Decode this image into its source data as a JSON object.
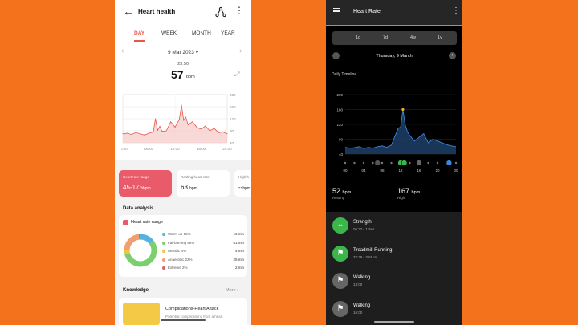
{
  "left": {
    "header": {
      "title": "Heart health",
      "back_icon": "back-arrow-icon",
      "share_icon": "share-icon",
      "more_icon": "more-vertical-icon"
    },
    "tabs": [
      {
        "label": "DAY",
        "active": true
      },
      {
        "label": "WEEK",
        "active": false
      },
      {
        "label": "MONTH",
        "active": false
      },
      {
        "label": "YEAR",
        "active": false
      }
    ],
    "date": "9 Mar 2023",
    "time": "23:50",
    "bpm_value": "57",
    "bpm_unit": "bpm",
    "accent_color": "#e8574a",
    "chart_data": {
      "type": "area",
      "x_ticks": [
        "00:00",
        "06:00",
        "12:00",
        "18:00",
        "24:00"
      ],
      "y_ticks": [
        "200",
        "160",
        "120",
        "80",
        "40"
      ],
      "ylim": [
        40,
        200
      ],
      "series": [
        {
          "x": [
            0,
            1,
            2,
            3,
            4,
            5,
            6,
            7,
            7.5,
            8,
            8.5,
            9,
            10,
            11,
            12,
            13,
            13.5,
            14,
            14.5,
            15,
            16,
            17,
            18,
            19,
            20,
            21,
            22,
            23,
            24
          ],
          "values": [
            70,
            72,
            68,
            74,
            70,
            66,
            72,
            76,
            120,
            82,
            95,
            78,
            80,
            110,
            92,
            118,
            165,
            115,
            125,
            100,
            110,
            92,
            85,
            96,
            80,
            88,
            74,
            76,
            70
          ]
        }
      ]
    },
    "cards": [
      {
        "label": "Heart rate range",
        "value": "45-175",
        "unit": "bpm"
      },
      {
        "label": "Resting heart rate",
        "value": "63",
        "unit": "bpm"
      },
      {
        "label": "High h",
        "value": "--",
        "unit": "bpm"
      }
    ],
    "data_analysis": {
      "title": "Data analysis",
      "subtitle": "Heart rate range",
      "zones": [
        {
          "name": "Warm-up 15%",
          "time": "16 min",
          "color": "#55b3de",
          "fraction": 0.15
        },
        {
          "name": "Fat-burning 56%",
          "time": "61 min",
          "color": "#7ccf6e",
          "fraction": 0.56
        },
        {
          "name": "Aerobic 4%",
          "time": "4 min",
          "color": "#f2c441",
          "fraction": 0.04
        },
        {
          "name": "Anaerobic 23%",
          "time": "25 min",
          "color": "#f0a070",
          "fraction": 0.23
        },
        {
          "name": "Extreme 2%",
          "time": "2 min",
          "color": "#e95b6a",
          "fraction": 0.02
        }
      ]
    },
    "knowledge": {
      "title": "Knowledge",
      "more": "More",
      "article_title": "Complications-Heart Attack",
      "article_sub": "Potential complications from a heart"
    }
  },
  "right": {
    "header": {
      "title": "Heart Rate",
      "menu_icon": "hamburger-menu-icon",
      "more_icon": "more-vertical-icon"
    },
    "ranges": [
      "1d",
      "7d",
      "4w",
      "1y"
    ],
    "date": "Thursday, 9 March",
    "timeline_label": "Daily Timeline",
    "chart_data": {
      "type": "line",
      "x_ticks": [
        "00",
        "04",
        "08",
        "12",
        "16",
        "20",
        "00"
      ],
      "y_ticks": [
        "200",
        "160",
        "120",
        "80",
        "40"
      ],
      "ylim": [
        40,
        200
      ],
      "series": [
        {
          "x": [
            0,
            1,
            2,
            3,
            4,
            5,
            6,
            7,
            8,
            9,
            10,
            10.5,
            11,
            11.5,
            12,
            12.5,
            13,
            13.5,
            14,
            15,
            16,
            17,
            18,
            19,
            20,
            21,
            22,
            23,
            24
          ],
          "values": [
            58,
            56,
            57,
            60,
            55,
            58,
            56,
            60,
            62,
            58,
            64,
            80,
            95,
            110,
            112,
            160,
            118,
            100,
            90,
            75,
            85,
            95,
            70,
            80,
            75,
            70,
            65,
            62,
            60
          ]
        }
      ],
      "line_color": "#3a86d8",
      "peak_color": "#e8b32a"
    },
    "stats": [
      {
        "value": "52",
        "unit": "bpm",
        "label": "Resting"
      },
      {
        "value": "167",
        "unit": "bpm",
        "label": "High"
      }
    ],
    "activities": [
      {
        "name": "Strength",
        "detail": "06:32 • 1 Set",
        "icon": "strength-icon",
        "color": "#3cb54a"
      },
      {
        "name": "Treadmill Running",
        "detail": "32:38 • 3.65 mi",
        "icon": "running-icon",
        "color": "#3cb54a"
      },
      {
        "name": "Walking",
        "detail": "13:00",
        "icon": "walking-icon",
        "color": "#666666"
      },
      {
        "name": "Walking",
        "detail": "16:00",
        "icon": "walking-icon",
        "color": "#666666"
      }
    ]
  }
}
